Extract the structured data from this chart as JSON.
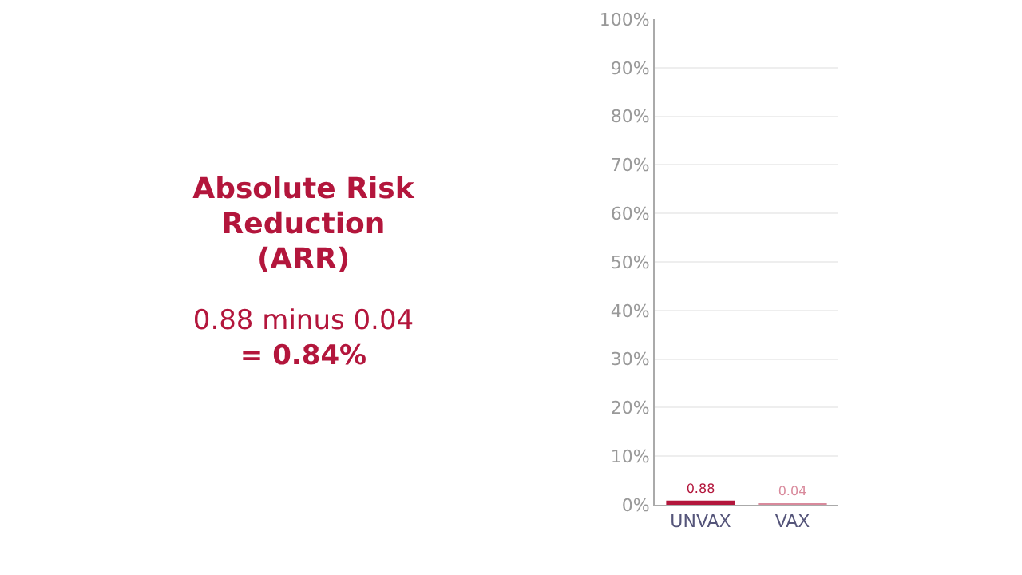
{
  "chart_data": {
    "type": "bar",
    "title": "Absolute Risk Reduction (ARR)",
    "annotations": [
      "0.88 minus 0.04",
      "= 0.84%"
    ],
    "categories": [
      "UNVAX",
      "VAX"
    ],
    "values": [
      0.88,
      0.04
    ],
    "colors": [
      "#b3163c",
      "#d98a9c"
    ],
    "ylim": [
      0,
      100
    ],
    "yticks": [
      {
        "value": 0,
        "label": "0%"
      },
      {
        "value": 10,
        "label": "10%"
      },
      {
        "value": 20,
        "label": "20%"
      },
      {
        "value": 30,
        "label": "30%"
      },
      {
        "value": 40,
        "label": "40%"
      },
      {
        "value": 50,
        "label": "50%"
      },
      {
        "value": 60,
        "label": "60%"
      },
      {
        "value": 70,
        "label": "70%"
      },
      {
        "value": 80,
        "label": "80%"
      },
      {
        "value": 90,
        "label": "90%"
      },
      {
        "value": 100,
        "label": "100%"
      }
    ],
    "grid": "y",
    "data_labels": true
  }
}
